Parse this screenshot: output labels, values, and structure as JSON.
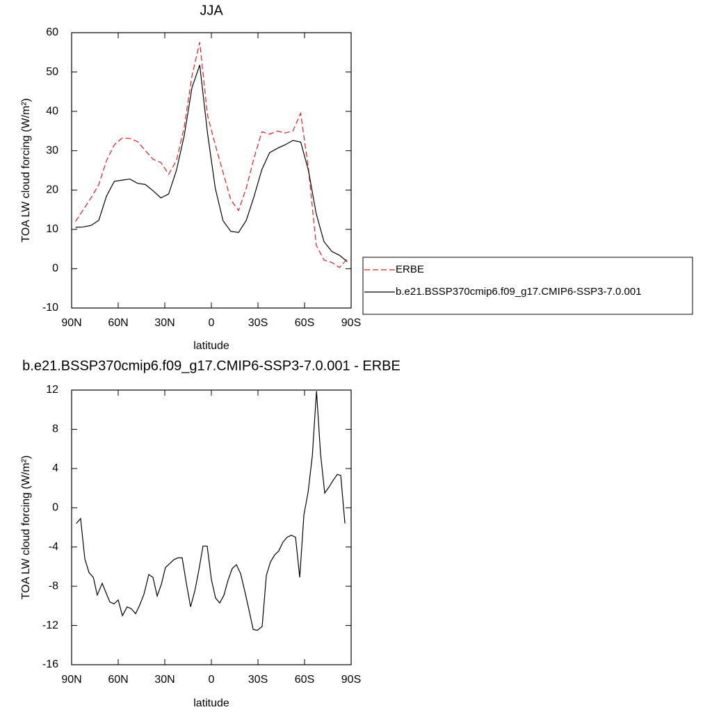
{
  "chart_data": [
    {
      "type": "line",
      "title": "JJA",
      "xlabel": "latitude",
      "ylabel": "TOA LW cloud forcing (W/m²)",
      "x": [
        87.5,
        82.5,
        77.5,
        72.5,
        67.5,
        62.5,
        57.5,
        52.5,
        47.5,
        42.5,
        37.5,
        32.5,
        27.5,
        22.5,
        17.5,
        12.5,
        7.5,
        2.5,
        -2.5,
        -7.5,
        -12.5,
        -17.5,
        -22.5,
        -27.5,
        -32.5,
        -37.5,
        -42.5,
        -47.5,
        -52.5,
        -57.5,
        -62.5,
        -67.5,
        -72.5,
        -77.5,
        -82.5,
        -87.5
      ],
      "series": [
        {
          "name": "ERBE",
          "color": "#e41a1c",
          "linestyle": "dashed",
          "values": [
            12,
            15,
            18,
            21.4,
            27.5,
            31.5,
            33.2,
            33.1,
            32.3,
            30,
            27.8,
            27,
            24,
            27.5,
            36,
            49,
            57.6,
            39,
            31.5,
            24.5,
            17.5,
            14.8,
            20.5,
            28.2,
            34.8,
            34.2,
            35,
            34.5,
            35,
            39.5,
            25.5,
            6,
            2.2,
            1.6,
            0.3,
            2.5
          ]
        },
        {
          "name": "b.e21.BSSP370cmip6.f09_g17.CMIP6-SSP3-7.0.001",
          "color": "#000000",
          "linestyle": "solid",
          "values": [
            10.5,
            10.6,
            11,
            12.3,
            18.5,
            22.2,
            22.5,
            22.8,
            21.7,
            21.4,
            19.8,
            18,
            19,
            25,
            33.8,
            46,
            51.8,
            34.5,
            20.5,
            12.2,
            9.5,
            9.2,
            12.3,
            18.4,
            25.2,
            29.5,
            30.6,
            31.5,
            32.6,
            32.2,
            25,
            14,
            6.9,
            4.4,
            3.4,
            1.8
          ]
        }
      ],
      "xlim": [
        90,
        -90
      ],
      "ylim": [
        -10,
        60
      ],
      "xticks": [
        {
          "value": 90,
          "label": "90N"
        },
        {
          "value": 60,
          "label": "60N"
        },
        {
          "value": 30,
          "label": "30N"
        },
        0,
        {
          "value": -30,
          "label": "30S"
        },
        {
          "value": -60,
          "label": "60S"
        },
        {
          "value": -90,
          "label": "90S"
        }
      ],
      "yticks": [
        -10,
        0,
        10,
        20,
        30,
        40,
        50,
        60
      ],
      "legend": "right"
    },
    {
      "type": "line",
      "title": "b.e21.BSSP370cmip6.f09_g17.CMIP6-SSP3-7.0.001 - ERBE",
      "xlabel": "latitude",
      "ylabel": "TOA LW cloud forcing (W/m²)",
      "x": [
        87,
        84.2,
        81.5,
        78.8,
        76,
        73.5,
        70.3,
        68,
        65.4,
        62.7,
        60,
        57.3,
        54.2,
        51.5,
        48.8,
        46.1,
        43.4,
        40.3,
        37.6,
        34.9,
        32.2,
        29.6,
        26.9,
        24.2,
        21.5,
        18.8,
        16.1,
        13.4,
        10.7,
        8.1,
        5.4,
        2.7,
        0,
        -2.7,
        -5.4,
        -8.1,
        -10.7,
        -13.4,
        -16.1,
        -18.8,
        -21.5,
        -24.2,
        -26.9,
        -29.6,
        -32.7,
        -35.4,
        -38.1,
        -40.8,
        -43.4,
        -46.1,
        -48.8,
        -51.5,
        -54.2,
        -56.9,
        -59.6,
        -62.3,
        -65,
        -67.7,
        -70.3,
        -73,
        -75.7,
        -78.4,
        -81.1,
        -83.3,
        -86
      ],
      "values": [
        -1.6,
        -1.1,
        -5.2,
        -6.6,
        -7.1,
        -8.9,
        -7.7,
        -8.6,
        -9.6,
        -9.8,
        -9.4,
        -11,
        -10.1,
        -10.3,
        -10.8,
        -9.9,
        -8.8,
        -6.8,
        -7.1,
        -9,
        -7.8,
        -6.1,
        -5.7,
        -5.3,
        -5.1,
        -5.1,
        -7.7,
        -10.1,
        -8.5,
        -6.4,
        -3.9,
        -3.9,
        -7.3,
        -9.2,
        -9.7,
        -8.9,
        -7.4,
        -6.2,
        -5.8,
        -6.7,
        -8.5,
        -10.4,
        -12.4,
        -12.5,
        -12.1,
        -6.9,
        -5.5,
        -4.8,
        -4.4,
        -3.5,
        -3,
        -2.8,
        -3,
        -7.1,
        -0.7,
        1.6,
        5.3,
        11.9,
        5.5,
        1.5,
        2.1,
        2.8,
        3.4,
        3.3,
        -1.6
      ],
      "color": "#000000",
      "xlim": [
        90,
        -90
      ],
      "ylim": [
        -16,
        12
      ],
      "xticks": [
        {
          "value": 90,
          "label": "90N"
        },
        {
          "value": 60,
          "label": "60N"
        },
        {
          "value": 30,
          "label": "30N"
        },
        0,
        {
          "value": -30,
          "label": "30S"
        },
        {
          "value": -60,
          "label": "60S"
        },
        {
          "value": -90,
          "label": "90S"
        }
      ],
      "yticks": [
        -16,
        -12,
        -8,
        -4,
        0,
        4,
        8,
        12
      ]
    }
  ]
}
